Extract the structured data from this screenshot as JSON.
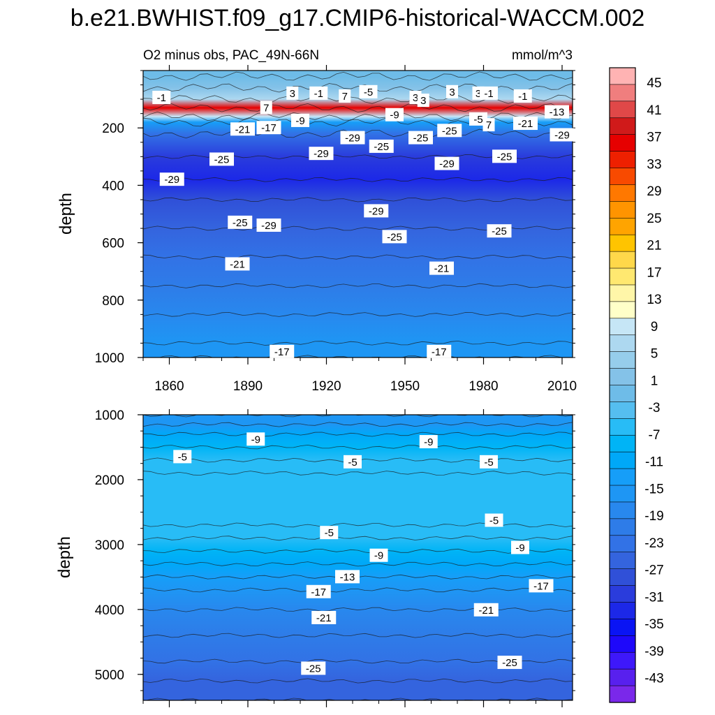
{
  "chart_data": {
    "type": "heatmap",
    "title": "b.e21.BWHIST.f09_g17.CMIP6-historical-WACCM.002",
    "subtitle": "O2 minus obs, PAC_49N-66N",
    "units": "mmol/m^3",
    "xlim": [
      1850,
      2014
    ],
    "x_ticks": [
      1860,
      1890,
      1920,
      1950,
      1980,
      2010
    ],
    "panels": [
      {
        "name": "upper",
        "ylabel": "depth",
        "ylim": [
          0,
          1000
        ],
        "y_ticks": [
          200,
          400,
          600,
          800,
          1000
        ],
        "depth_profile": [
          {
            "depth": 20,
            "value": -1
          },
          {
            "depth": 60,
            "value": 1
          },
          {
            "depth": 100,
            "value": 5
          },
          {
            "depth": 130,
            "value": 37
          },
          {
            "depth": 160,
            "value": 9
          },
          {
            "depth": 180,
            "value": -13
          },
          {
            "depth": 220,
            "value": -23
          },
          {
            "depth": 300,
            "value": -31
          },
          {
            "depth": 380,
            "value": -33
          },
          {
            "depth": 450,
            "value": -29
          },
          {
            "depth": 550,
            "value": -27
          },
          {
            "depth": 650,
            "value": -23
          },
          {
            "depth": 750,
            "value": -21
          },
          {
            "depth": 850,
            "value": -19
          },
          {
            "depth": 950,
            "value": -17
          },
          {
            "depth": 1000,
            "value": -17
          }
        ],
        "contour_labels": [
          {
            "x": 1857,
            "depth": 95,
            "text": "-1"
          },
          {
            "x": 1897,
            "depth": 130,
            "text": "7"
          },
          {
            "x": 1907,
            "depth": 80,
            "text": "3"
          },
          {
            "x": 1917,
            "depth": 80,
            "text": "-1"
          },
          {
            "x": 1927,
            "depth": 90,
            "text": "7"
          },
          {
            "x": 1936,
            "depth": 75,
            "text": "-5"
          },
          {
            "x": 1954,
            "depth": 95,
            "text": "3"
          },
          {
            "x": 1957,
            "depth": 105,
            "text": "3"
          },
          {
            "x": 1968,
            "depth": 75,
            "text": "3"
          },
          {
            "x": 1978,
            "depth": 80,
            "text": "3"
          },
          {
            "x": 1982,
            "depth": 80,
            "text": "-1"
          },
          {
            "x": 1995,
            "depth": 90,
            "text": "-1"
          },
          {
            "x": 2008,
            "depth": 145,
            "text": "-13"
          },
          {
            "x": 1888,
            "depth": 205,
            "text": "-21"
          },
          {
            "x": 1898,
            "depth": 200,
            "text": "-17"
          },
          {
            "x": 1910,
            "depth": 175,
            "text": "-9"
          },
          {
            "x": 1930,
            "depth": 235,
            "text": "-29"
          },
          {
            "x": 1946,
            "depth": 155,
            "text": "-9"
          },
          {
            "x": 1941,
            "depth": 265,
            "text": "-25"
          },
          {
            "x": 1956,
            "depth": 235,
            "text": "-25"
          },
          {
            "x": 1967,
            "depth": 210,
            "text": "-25"
          },
          {
            "x": 1978,
            "depth": 170,
            "text": "-5"
          },
          {
            "x": 1982,
            "depth": 190,
            "text": "7"
          },
          {
            "x": 1996,
            "depth": 185,
            "text": "-21"
          },
          {
            "x": 2010,
            "depth": 225,
            "text": "-29"
          },
          {
            "x": 1880,
            "depth": 310,
            "text": "-25"
          },
          {
            "x": 1861,
            "depth": 380,
            "text": "-29"
          },
          {
            "x": 1918,
            "depth": 290,
            "text": "-29"
          },
          {
            "x": 1966,
            "depth": 325,
            "text": "-29"
          },
          {
            "x": 1988,
            "depth": 300,
            "text": "-25"
          },
          {
            "x": 1939,
            "depth": 490,
            "text": "-29"
          },
          {
            "x": 1887,
            "depth": 530,
            "text": "-25"
          },
          {
            "x": 1898,
            "depth": 540,
            "text": "-29"
          },
          {
            "x": 1946,
            "depth": 580,
            "text": "-25"
          },
          {
            "x": 1986,
            "depth": 560,
            "text": "-25"
          },
          {
            "x": 1886,
            "depth": 675,
            "text": "-21"
          },
          {
            "x": 1964,
            "depth": 690,
            "text": "-21"
          },
          {
            "x": 1903,
            "depth": 980,
            "text": "-17"
          },
          {
            "x": 1963,
            "depth": 980,
            "text": "-17"
          }
        ]
      },
      {
        "name": "lower",
        "ylabel": "depth",
        "ylim": [
          1000,
          5400
        ],
        "y_ticks": [
          1000,
          2000,
          3000,
          4000,
          5000
        ],
        "depth_profile": [
          {
            "depth": 1000,
            "value": -17
          },
          {
            "depth": 1150,
            "value": -15
          },
          {
            "depth": 1300,
            "value": -11
          },
          {
            "depth": 1500,
            "value": -9
          },
          {
            "depth": 1700,
            "value": -7
          },
          {
            "depth": 1900,
            "value": -5
          },
          {
            "depth": 2700,
            "value": -5
          },
          {
            "depth": 2900,
            "value": -7
          },
          {
            "depth": 3100,
            "value": -9
          },
          {
            "depth": 3300,
            "value": -11
          },
          {
            "depth": 3500,
            "value": -13
          },
          {
            "depth": 3700,
            "value": -17
          },
          {
            "depth": 4000,
            "value": -19
          },
          {
            "depth": 4400,
            "value": -21
          },
          {
            "depth": 4800,
            "value": -23
          },
          {
            "depth": 5100,
            "value": -25
          },
          {
            "depth": 5400,
            "value": -27
          }
        ],
        "contour_labels": [
          {
            "x": 1893,
            "depth": 1380,
            "text": "-9"
          },
          {
            "x": 1959,
            "depth": 1420,
            "text": "-9"
          },
          {
            "x": 1865,
            "depth": 1650,
            "text": "-5"
          },
          {
            "x": 1930,
            "depth": 1730,
            "text": "-5"
          },
          {
            "x": 1982,
            "depth": 1730,
            "text": "-5"
          },
          {
            "x": 1984,
            "depth": 2630,
            "text": "-5"
          },
          {
            "x": 1921,
            "depth": 2820,
            "text": "-5"
          },
          {
            "x": 1940,
            "depth": 3170,
            "text": "-9"
          },
          {
            "x": 1994,
            "depth": 3050,
            "text": "-9"
          },
          {
            "x": 1928,
            "depth": 3500,
            "text": "-13"
          },
          {
            "x": 1917,
            "depth": 3730,
            "text": "-17"
          },
          {
            "x": 2002,
            "depth": 3640,
            "text": "-17"
          },
          {
            "x": 1919,
            "depth": 4130,
            "text": "-21"
          },
          {
            "x": 1981,
            "depth": 4010,
            "text": "-21"
          },
          {
            "x": 1915,
            "depth": 4910,
            "text": "-25"
          },
          {
            "x": 1990,
            "depth": 4820,
            "text": "-25"
          }
        ]
      }
    ],
    "colorbar": {
      "labels": [
        "45",
        "41",
        "37",
        "33",
        "29",
        "25",
        "21",
        "17",
        "13",
        "9",
        "5",
        "1",
        "-3",
        "-7",
        "-11",
        "-15",
        "-19",
        "-23",
        "-27",
        "-31",
        "-35",
        "-39",
        "-43"
      ],
      "colors": [
        "#ffb3b3",
        "#f07e7e",
        "#e04848",
        "#d01a1a",
        "#e60000",
        "#ee2000",
        "#f84a00",
        "#ff7800",
        "#ff9400",
        "#ffa400",
        "#ffc400",
        "#ffd84a",
        "#ffe870",
        "#fff6a8",
        "#ffffc8",
        "#c6e6f6",
        "#add8f0",
        "#96cdeb",
        "#84c2e8",
        "#6ebce8",
        "#55bef0",
        "#28bcf6",
        "#00b4f6",
        "#00a8f8",
        "#169ef8",
        "#1e96f4",
        "#2888ee",
        "#2e7ce8",
        "#3272e6",
        "#3464de",
        "#3050d8",
        "#2a3cdc",
        "#1c28e8",
        "#0a14f4",
        "#1e08fa",
        "#3e18fa",
        "#5820ee",
        "#7a28ea"
      ]
    }
  }
}
